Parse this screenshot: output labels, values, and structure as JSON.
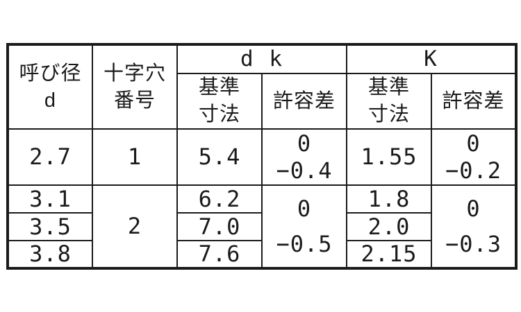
{
  "colors": {
    "background": "#ffffff",
    "text": "#1a1a1a",
    "border": "#1a1a1a"
  },
  "table": {
    "header": {
      "nominal_diameter": "呼び径\nd",
      "recess_number": "十字穴\n番号",
      "group_dk": "d k",
      "group_k": "K",
      "dk_basic": "基準\n寸法",
      "dk_tolerance": "許容差",
      "k_basic": "基準\n寸法",
      "k_tolerance": "許容差"
    },
    "row1": {
      "d": "2.7",
      "recess": "1",
      "dk_basic": "5.4",
      "dk_tolerance": "0\n−0.4",
      "k_basic": "1.55",
      "k_tolerance": "0\n−0.2"
    },
    "group2": {
      "recess": "2",
      "dk_tolerance": "0\n−0.5",
      "k_tolerance": "0\n−0.3",
      "rows": [
        {
          "d": "3.1",
          "dk_basic": "6.2",
          "k_basic": "1.8"
        },
        {
          "d": "3.5",
          "dk_basic": "7.0",
          "k_basic": "2.0"
        },
        {
          "d": "3.8",
          "dk_basic": "7.6",
          "k_basic": "2.15"
        }
      ]
    }
  }
}
